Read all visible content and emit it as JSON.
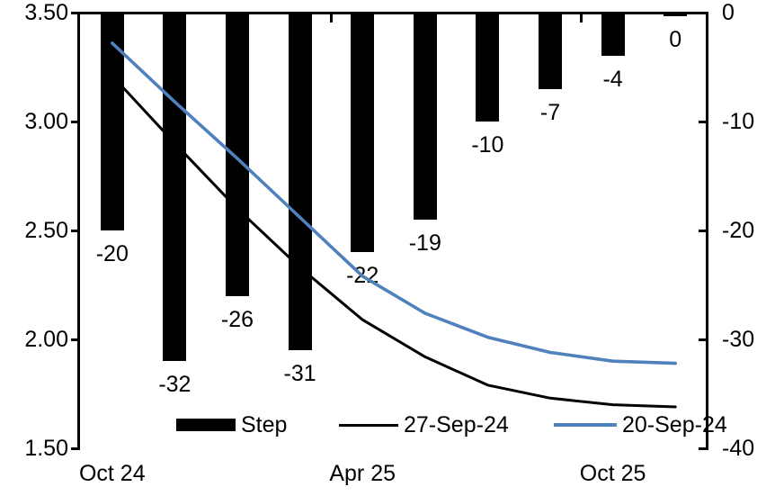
{
  "chart_data": {
    "type": "bar",
    "subtype": "bar-line-combo",
    "title": "",
    "categories_count": 10,
    "x_axis": {
      "tick_labels": [
        {
          "index": 0,
          "label": "Oct 24"
        },
        {
          "index": 4,
          "label": "Apr 25"
        },
        {
          "index": 8,
          "label": "Oct 25"
        }
      ]
    },
    "left_axis": {
      "min": 1.5,
      "max": 3.5,
      "tick_labels": [
        "3.50",
        "3.00",
        "2.50",
        "2.00",
        "1.50"
      ],
      "tick_values": [
        3.5,
        3.0,
        2.5,
        2.0,
        1.5
      ]
    },
    "right_axis": {
      "min": -40,
      "max": 0,
      "tick_labels": [
        "0",
        "-10",
        "-20",
        "-30",
        "-40"
      ],
      "tick_values": [
        0,
        -10,
        -20,
        -30,
        -40
      ]
    },
    "bars": {
      "name": "Step",
      "axis": "right",
      "color": "#000000",
      "values": [
        -20,
        -32,
        -26,
        -31,
        -22,
        -19,
        -10,
        -7,
        -4,
        0
      ],
      "labels": [
        "-20",
        "-32",
        "-26",
        "-31",
        "-22",
        "-19",
        "-10",
        "-7",
        "-4",
        "0"
      ]
    },
    "lines": [
      {
        "name": "27-Sep-24",
        "axis": "left",
        "color": "#000000",
        "values": [
          3.21,
          2.9,
          2.6,
          2.33,
          2.09,
          1.92,
          1.79,
          1.73,
          1.7,
          1.69
        ]
      },
      {
        "name": "20-Sep-24",
        "axis": "left",
        "color": "#4f81bd",
        "values": [
          3.36,
          3.09,
          2.83,
          2.56,
          2.29,
          2.12,
          2.01,
          1.94,
          1.9,
          1.89
        ]
      }
    ],
    "legend": {
      "position": "bottom",
      "entries": [
        {
          "label": "Step",
          "swatch": "bar",
          "color": "#000000"
        },
        {
          "label": "27-Sep-24",
          "swatch": "line",
          "color": "#000000"
        },
        {
          "label": "20-Sep-24",
          "swatch": "line",
          "color": "#4f81bd"
        }
      ]
    },
    "colors": {
      "bar": "#000000",
      "line_27_sep": "#000000",
      "line_20_sep": "#4f81bd",
      "background": "#ffffff"
    }
  }
}
